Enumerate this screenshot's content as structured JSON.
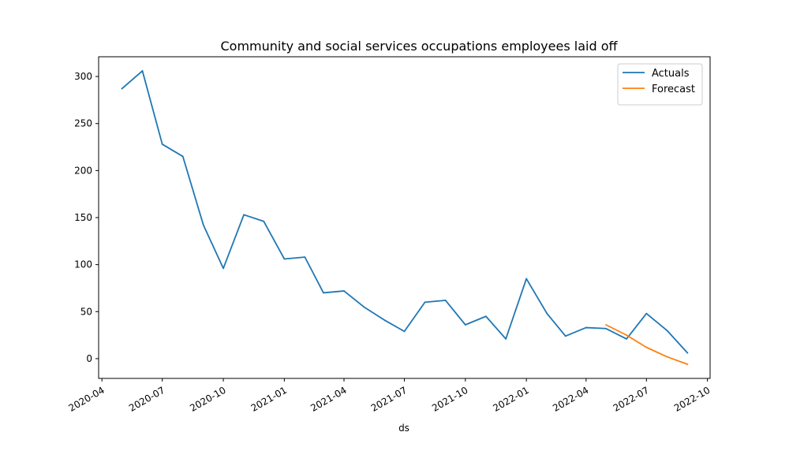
{
  "chart_data": {
    "type": "line",
    "title": "Community and social services occupations employees laid off",
    "xlabel": "ds",
    "ylabel": "",
    "xlim": [
      "2020-03-27",
      "2022-10-05"
    ],
    "ylim": [
      -21,
      321
    ],
    "y_ticks": [
      0,
      50,
      100,
      150,
      200,
      250,
      300
    ],
    "x_ticks": [
      "2020-04",
      "2020-07",
      "2020-10",
      "2021-01",
      "2021-04",
      "2021-07",
      "2021-10",
      "2022-01",
      "2022-04",
      "2022-07",
      "2022-10"
    ],
    "grid": false,
    "legend_position": "top-right",
    "series": [
      {
        "name": "Actuals",
        "color": "#1f77b4",
        "points": [
          [
            "2020-05-01",
            287
          ],
          [
            "2020-06-01",
            306
          ],
          [
            "2020-07-01",
            228
          ],
          [
            "2020-08-01",
            215
          ],
          [
            "2020-09-01",
            142
          ],
          [
            "2020-10-01",
            96
          ],
          [
            "2020-11-01",
            153
          ],
          [
            "2020-12-01",
            146
          ],
          [
            "2021-01-01",
            106
          ],
          [
            "2021-02-01",
            108
          ],
          [
            "2021-03-01",
            70
          ],
          [
            "2021-04-01",
            72
          ],
          [
            "2021-05-01",
            55
          ],
          [
            "2021-06-01",
            41
          ],
          [
            "2021-07-01",
            29
          ],
          [
            "2021-08-01",
            60
          ],
          [
            "2021-09-01",
            62
          ],
          [
            "2021-10-01",
            36
          ],
          [
            "2021-11-01",
            45
          ],
          [
            "2021-12-01",
            21
          ],
          [
            "2022-01-01",
            85
          ],
          [
            "2022-02-01",
            48
          ],
          [
            "2022-03-01",
            24
          ],
          [
            "2022-04-01",
            33
          ],
          [
            "2022-05-01",
            32
          ],
          [
            "2022-06-01",
            21
          ],
          [
            "2022-07-01",
            48
          ],
          [
            "2022-08-01",
            30
          ],
          [
            "2022-09-01",
            6
          ]
        ]
      },
      {
        "name": "Forecast",
        "color": "#ff7f0e",
        "points": [
          [
            "2022-05-01",
            36
          ],
          [
            "2022-06-01",
            25
          ],
          [
            "2022-07-01",
            12
          ],
          [
            "2022-08-01",
            2
          ],
          [
            "2022-09-01",
            -6
          ]
        ]
      }
    ]
  }
}
